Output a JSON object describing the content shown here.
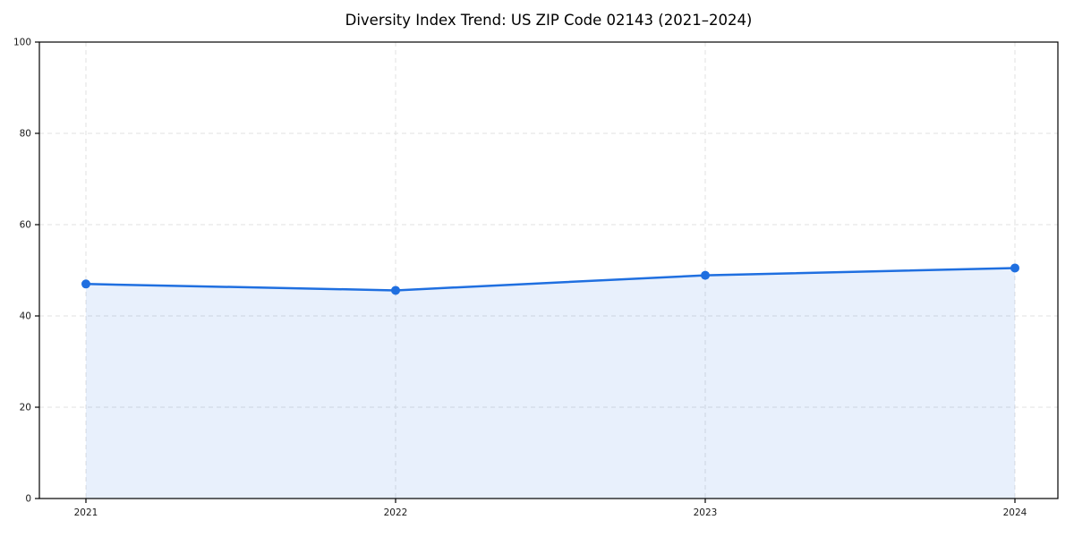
{
  "chart_data": {
    "type": "area",
    "title": "Diversity Index Trend: US ZIP Code 02143 (2021–2024)",
    "x": [
      2021,
      2022,
      2023,
      2024
    ],
    "series": [
      {
        "name": "Diversity Index",
        "values": [
          47.0,
          45.6,
          48.9,
          50.5
        ]
      }
    ],
    "xtick_labels": [
      "2021",
      "2022",
      "2023",
      "2024"
    ],
    "ytick_values": [
      0,
      20,
      40,
      60,
      80,
      100
    ],
    "ytick_labels": [
      "0",
      "20",
      "40",
      "60",
      "80",
      "100"
    ],
    "xlabel": "",
    "ylabel": "",
    "ylim": [
      0,
      100
    ],
    "xlim_years": [
      2020.85,
      2024.15
    ],
    "grid": "dashed",
    "legend": "none",
    "colors": {
      "line": "#1f6fe0",
      "marker": "#1f6fe0",
      "fill": "rgba(31,111,224,0.10)",
      "grid": "#e0e0e0",
      "spine": "#000000",
      "tick": "#000000",
      "background": "#ffffff"
    }
  }
}
